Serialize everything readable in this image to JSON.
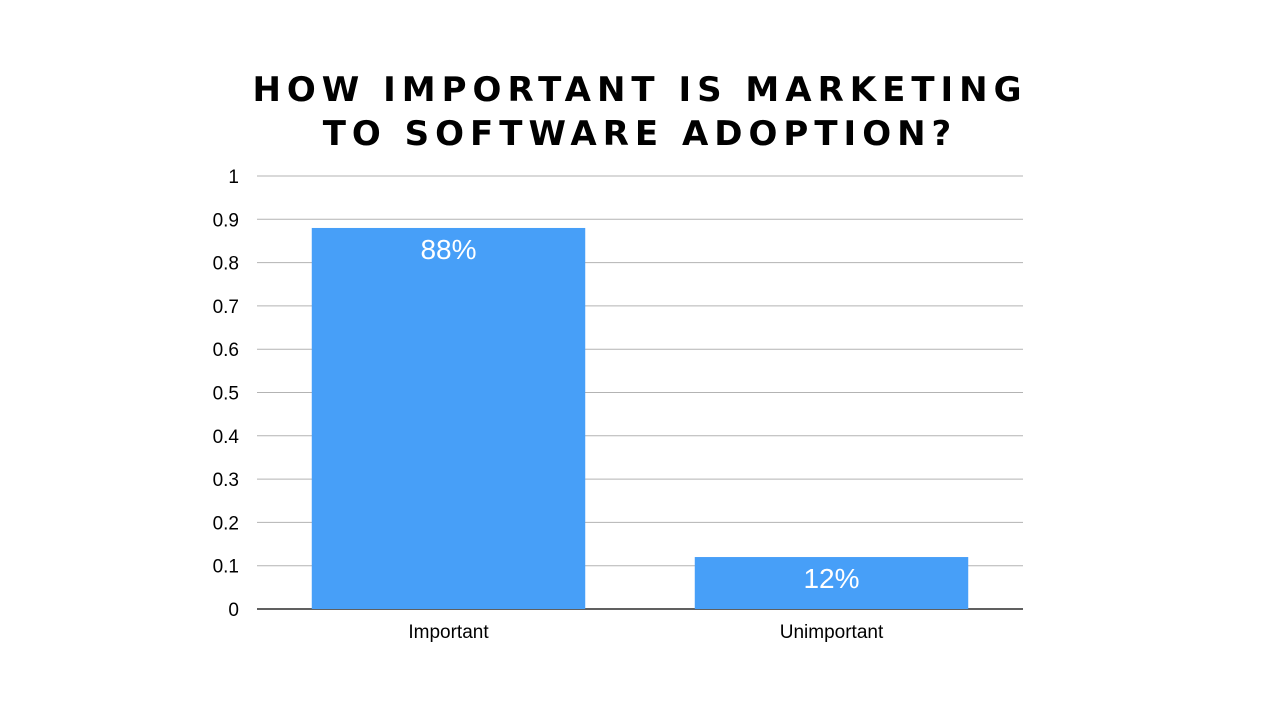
{
  "chart_data": {
    "type": "bar",
    "title_lines": [
      "HOW IMPORTANT IS MARKETING",
      "TO SOFTWARE ADOPTION?"
    ],
    "categories": [
      "Important",
      "Unimportant"
    ],
    "values": [
      0.88,
      0.12
    ],
    "data_labels": [
      "88%",
      "12%"
    ],
    "y_ticks": [
      "0",
      "0.1",
      "0.2",
      "0.3",
      "0.4",
      "0.5",
      "0.6",
      "0.7",
      "0.8",
      "0.9",
      "1"
    ],
    "ylim": [
      0,
      1
    ],
    "grid": true,
    "bar_color": "#479ff8"
  }
}
